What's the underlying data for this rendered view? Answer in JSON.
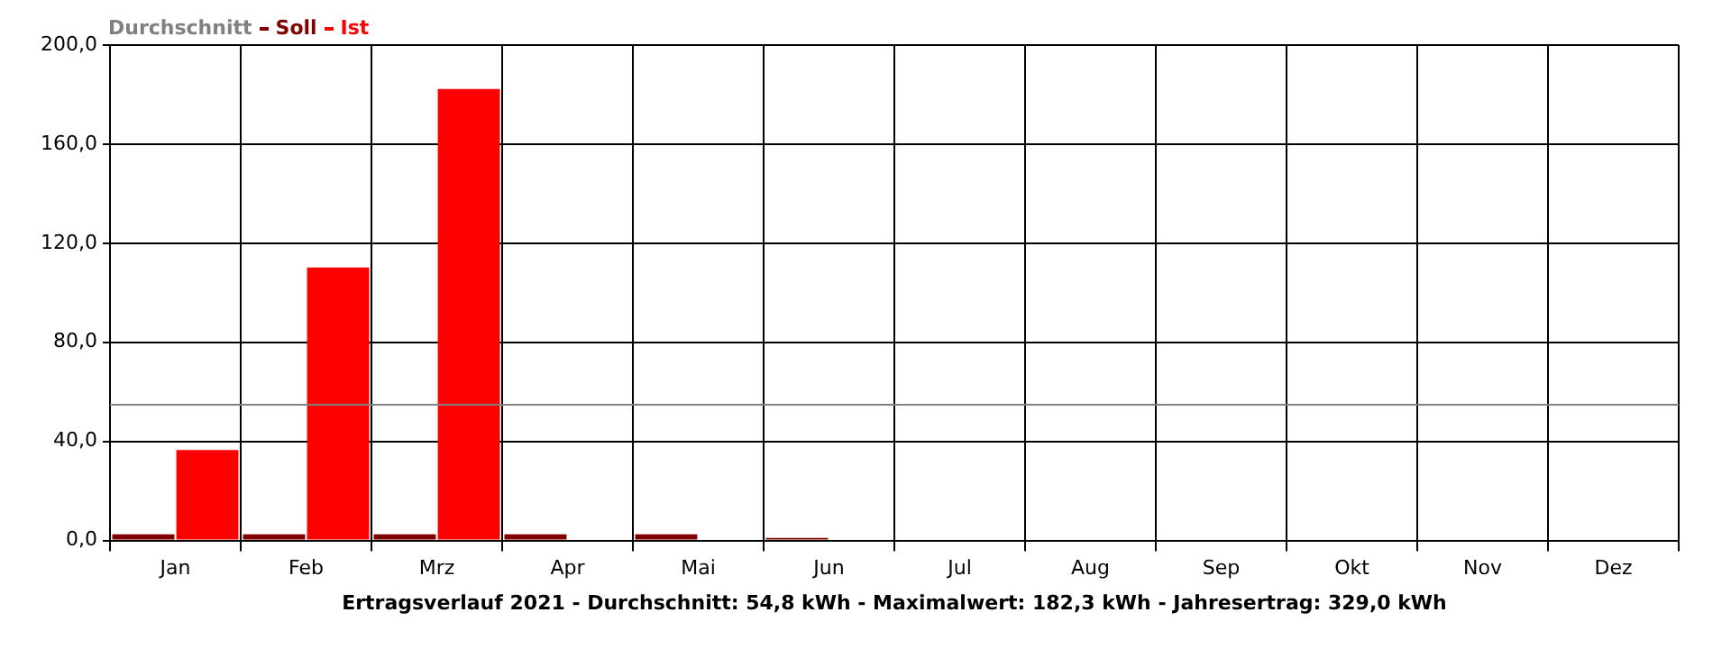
{
  "chart_data": {
    "type": "bar",
    "categories": [
      "Jan",
      "Feb",
      "Mrz",
      "Apr",
      "Mai",
      "Jun",
      "Jul",
      "Aug",
      "Sep",
      "Okt",
      "Nov",
      "Dez"
    ],
    "series": [
      {
        "name": "Soll",
        "color": "#800000",
        "values": [
          2.5,
          2.5,
          2.5,
          2.5,
          2.5,
          1.0,
          null,
          null,
          null,
          null,
          null,
          null
        ]
      },
      {
        "name": "Ist",
        "color": "#ff0000",
        "values": [
          36.5,
          110.2,
          182.3,
          null,
          null,
          null,
          null,
          null,
          null,
          null,
          null,
          null
        ]
      }
    ],
    "ref_lines": [
      {
        "axis": "y",
        "value": 54.8,
        "label": "Durchschnitt",
        "color": "#808080"
      }
    ],
    "ylim": [
      0,
      200
    ],
    "yticks": [
      {
        "value": 0,
        "label": "0,0"
      },
      {
        "value": 40,
        "label": "40,0"
      },
      {
        "value": 80,
        "label": "80,0"
      },
      {
        "value": 120,
        "label": "120,0"
      },
      {
        "value": 160,
        "label": "160,0"
      },
      {
        "value": 200,
        "label": "200,0"
      }
    ],
    "grid": true,
    "legend": "top left",
    "annotations": [
      "Ertragsverlauf 2021 - Durchschnitt: 54,8 kWh - Maximalwert: 182,3 kWh - Jahresertrag: 329,0 kWh"
    ]
  }
}
